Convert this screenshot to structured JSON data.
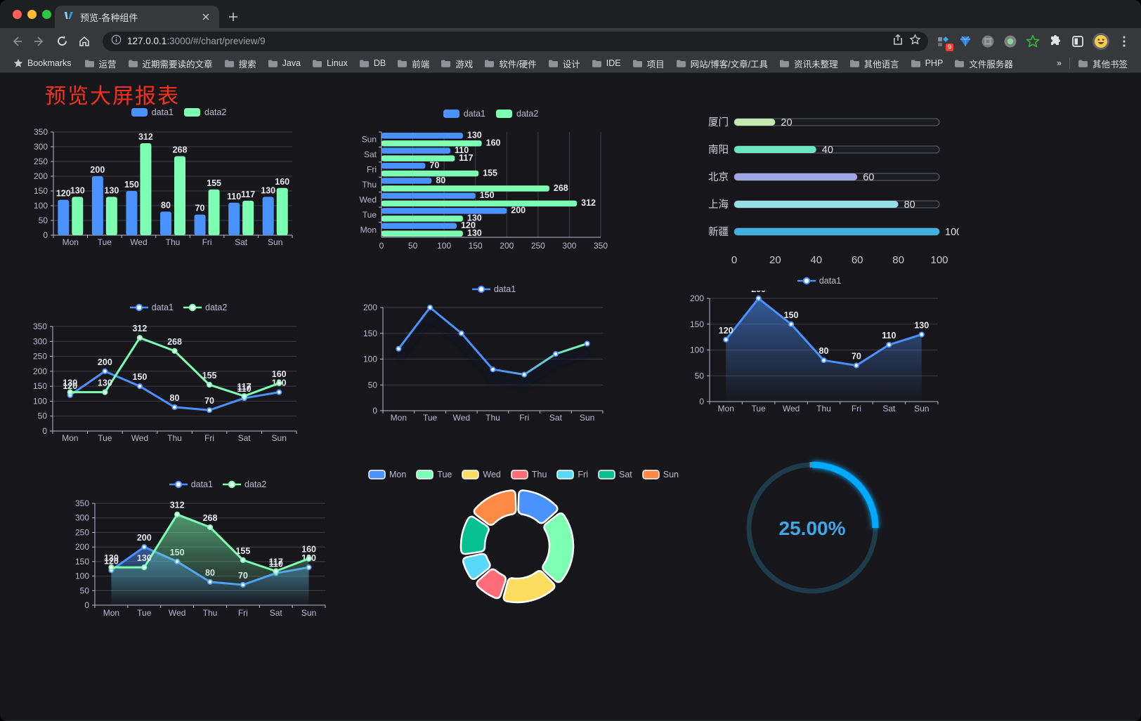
{
  "browser": {
    "tab": {
      "title": "预览-各种组件"
    },
    "url": {
      "host": "127.0.0.1",
      "rest": ":3000/#/chart/preview/9"
    },
    "bookmarks_label": "Bookmarks",
    "bookmarks": [
      "运营",
      "近期需要读的文章",
      "搜索",
      "Java",
      "Linux",
      "DB",
      "前端",
      "游戏",
      "软件/硬件",
      "设计",
      "IDE",
      "项目",
      "网站/博客/文章/工具",
      "资讯未整理",
      "其他语言",
      "PHP",
      "文件服务器"
    ],
    "bookmarks_overflow": "»",
    "other_bookmarks": "其他书签",
    "extension_badge": "9",
    "icons": [
      "back-arrow",
      "forward-arrow",
      "reload",
      "home",
      "info",
      "share",
      "bookmark-star",
      "extension-grid",
      "extension-gem",
      "extension-disabled",
      "extension-record",
      "extension-green-star",
      "extensions-puzzle",
      "reader-mode",
      "profile-avatar",
      "menu-dots"
    ]
  },
  "page": {
    "title": "预览大屏报表",
    "title_color": "#f5311d",
    "background": "#17161b"
  },
  "chart_data": [
    {
      "id": "bar-vertical",
      "type": "bar",
      "categories": [
        "Mon",
        "Tue",
        "Wed",
        "Thu",
        "Fri",
        "Sat",
        "Sun"
      ],
      "series": [
        {
          "name": "data1",
          "color": "#4992ff",
          "values": [
            120,
            200,
            150,
            80,
            70,
            110,
            130
          ]
        },
        {
          "name": "data2",
          "color": "#7cffb2",
          "values": [
            130,
            130,
            312,
            268,
            155,
            117,
            160
          ]
        }
      ],
      "ylim": [
        0,
        350
      ],
      "ystep": 50,
      "grid": true,
      "labels": true,
      "legend_position": "top"
    },
    {
      "id": "bar-horizontal",
      "type": "bar",
      "orientation": "horizontal",
      "categories": [
        "Mon",
        "Tue",
        "Wed",
        "Thu",
        "Fri",
        "Sat",
        "Sun"
      ],
      "series": [
        {
          "name": "data1",
          "color": "#4992ff",
          "values": [
            120,
            200,
            150,
            80,
            70,
            110,
            130
          ]
        },
        {
          "name": "data2",
          "color": "#7cffb2",
          "values": [
            130,
            130,
            312,
            268,
            155,
            117,
            160
          ]
        }
      ],
      "xlim": [
        0,
        350
      ],
      "xstep": 50,
      "grid": true,
      "labels": true,
      "legend_position": "top"
    },
    {
      "id": "progress-bars",
      "type": "bar",
      "orientation": "horizontal-progress",
      "items": [
        {
          "label": "厦门",
          "value": 20,
          "color": "#c4ebad"
        },
        {
          "label": "南阳",
          "value": 40,
          "color": "#6be6c1"
        },
        {
          "label": "北京",
          "value": 60,
          "color": "#a0a7e6"
        },
        {
          "label": "上海",
          "value": 80,
          "color": "#96dee8"
        },
        {
          "label": "新疆",
          "value": 100,
          "color": "#3fb1e3"
        }
      ],
      "max": 100,
      "ticks": [
        0,
        20,
        40,
        60,
        80,
        100
      ]
    },
    {
      "id": "line-two-series",
      "type": "line",
      "categories": [
        "Mon",
        "Tue",
        "Wed",
        "Thu",
        "Fri",
        "Sat",
        "Sun"
      ],
      "series": [
        {
          "name": "data1",
          "color": "#4992ff",
          "values": [
            120,
            200,
            150,
            80,
            70,
            110,
            130
          ]
        },
        {
          "name": "data2",
          "color": "#7cffb2",
          "values": [
            130,
            130,
            312,
            268,
            155,
            117,
            160
          ]
        }
      ],
      "ylim": [
        0,
        350
      ],
      "ystep": 50,
      "labels": true,
      "legend_position": "top"
    },
    {
      "id": "line-gradient",
      "type": "line",
      "categories": [
        "Mon",
        "Tue",
        "Wed",
        "Thu",
        "Fri",
        "Sat",
        "Sun"
      ],
      "series": [
        {
          "name": "data1",
          "color": "#4992ff",
          "color_end": "#7cffb2",
          "values": [
            120,
            200,
            150,
            80,
            70,
            110,
            130
          ]
        }
      ],
      "ylim": [
        0,
        200
      ],
      "ystep": 50,
      "labels": false,
      "legend_position": "top"
    },
    {
      "id": "line-area",
      "type": "area",
      "categories": [
        "Mon",
        "Tue",
        "Wed",
        "Thu",
        "Fri",
        "Sat",
        "Sun"
      ],
      "series": [
        {
          "name": "data1",
          "color": "#4992ff",
          "area": true,
          "values": [
            120,
            200,
            150,
            80,
            70,
            110,
            130
          ]
        }
      ],
      "ylim": [
        0,
        200
      ],
      "ystep": 50,
      "labels": true,
      "legend_position": "top"
    },
    {
      "id": "line-two-area",
      "type": "area",
      "categories": [
        "Mon",
        "Tue",
        "Wed",
        "Thu",
        "Fri",
        "Sat",
        "Sun"
      ],
      "series": [
        {
          "name": "data1",
          "color": "#4992ff",
          "area": true,
          "values": [
            120,
            200,
            150,
            80,
            70,
            110,
            130
          ]
        },
        {
          "name": "data2",
          "color": "#7cffb2",
          "area": true,
          "values": [
            130,
            130,
            312,
            268,
            155,
            117,
            160
          ]
        }
      ],
      "ylim": [
        0,
        350
      ],
      "ystep": 50,
      "labels": true,
      "legend_position": "top"
    },
    {
      "id": "donut",
      "type": "pie",
      "items": [
        {
          "label": "Mon",
          "value": 120,
          "color": "#4992ff"
        },
        {
          "label": "Tue",
          "value": 200,
          "color": "#7cffb2"
        },
        {
          "label": "Wed",
          "value": 150,
          "color": "#fddd60"
        },
        {
          "label": "Thu",
          "value": 80,
          "color": "#ff6e76"
        },
        {
          "label": "Fri",
          "value": 70,
          "color": "#58d9f9"
        },
        {
          "label": "Sat",
          "value": 110,
          "color": "#05c091"
        },
        {
          "label": "Sun",
          "value": 130,
          "color": "#ff8a45"
        }
      ],
      "donut": true,
      "border_color": "#ffffff",
      "legend_position": "top"
    },
    {
      "id": "gauge",
      "type": "gauge",
      "value": 25,
      "display": "25.00%",
      "max": 100,
      "color": "#00aaff",
      "track_color": "#1d3b4a",
      "text_color": "#3fa6e8"
    }
  ]
}
